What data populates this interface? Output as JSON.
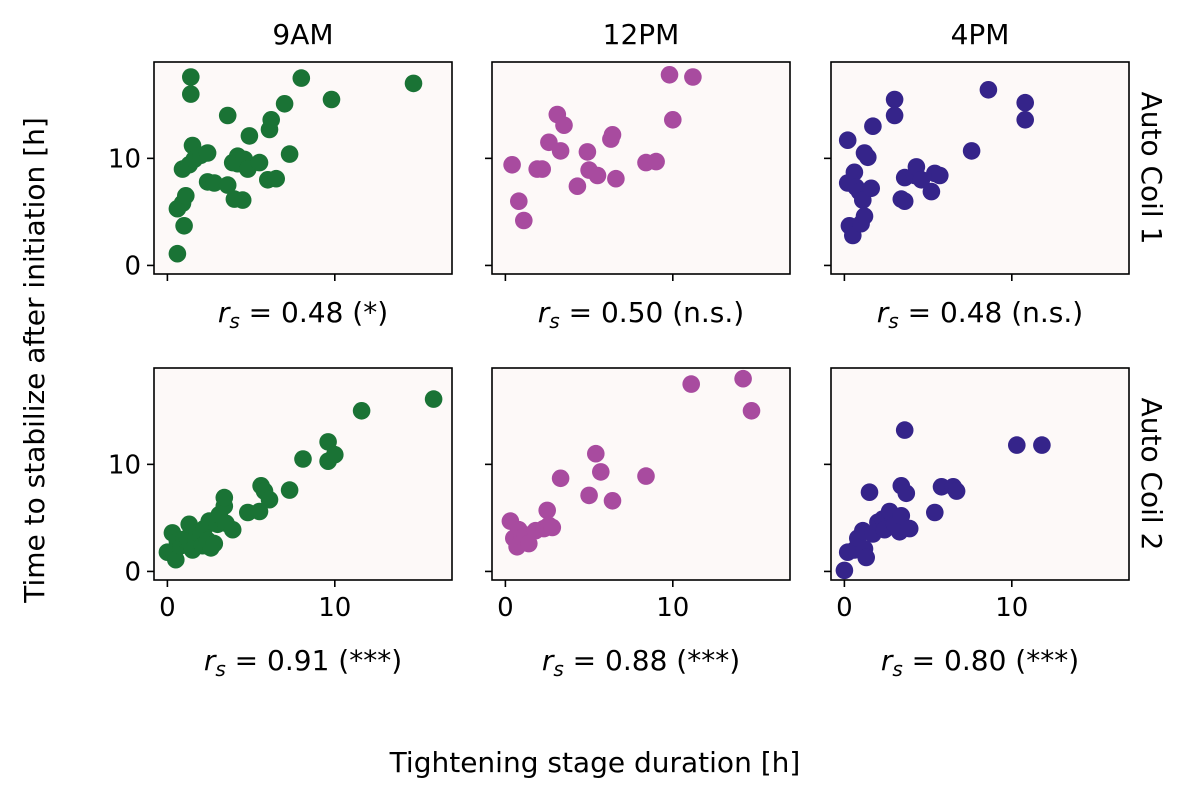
{
  "chart_data": {
    "type": "scatter",
    "figure": {
      "xlabel": "Tightening stage duration [h]",
      "ylabel": "Time to stabilize after initiation [h]",
      "columns": [
        "9AM",
        "12PM",
        "4PM"
      ],
      "rows": [
        "Auto Coil 1",
        "Auto Coil 2"
      ],
      "xlim": [
        -0.8,
        17
      ],
      "ylim": [
        -0.8,
        19
      ],
      "xticks": [
        0,
        10
      ],
      "yticks": [
        0,
        10
      ],
      "grid": false,
      "colors": {
        "9AM": "#1a7335",
        "12PM": "#a84b9f",
        "4PM": "#35248a",
        "panel_background": "#fdf9f8"
      }
    },
    "panels": [
      {
        "row": "Auto Coil 1",
        "column": "9AM",
        "color": "#1a7335",
        "stat_symbol": "r",
        "stat_sub": "s",
        "stat_text": " = 0.48 (*)",
        "points": [
          [
            0.6,
            1.1
          ],
          [
            0.6,
            5.3
          ],
          [
            0.9,
            5.8
          ],
          [
            1.1,
            6.5
          ],
          [
            1.0,
            3.7
          ],
          [
            0.9,
            9.0
          ],
          [
            1.3,
            9.4
          ],
          [
            1.4,
            16.0
          ],
          [
            1.4,
            17.6
          ],
          [
            1.5,
            11.2
          ],
          [
            1.6,
            9.9
          ],
          [
            2.0,
            10.3
          ],
          [
            2.4,
            10.5
          ],
          [
            2.4,
            7.8
          ],
          [
            2.8,
            7.7
          ],
          [
            3.6,
            14.0
          ],
          [
            3.6,
            7.5
          ],
          [
            3.9,
            9.6
          ],
          [
            4.0,
            6.2
          ],
          [
            4.2,
            10.2
          ],
          [
            4.2,
            9.5
          ],
          [
            4.5,
            6.1
          ],
          [
            4.6,
            9.9
          ],
          [
            4.8,
            9.0
          ],
          [
            4.9,
            12.1
          ],
          [
            5.5,
            9.6
          ],
          [
            6.0,
            8.0
          ],
          [
            6.1,
            12.7
          ],
          [
            6.2,
            13.6
          ],
          [
            6.5,
            8.1
          ],
          [
            7.0,
            15.1
          ],
          [
            7.3,
            10.4
          ],
          [
            8.0,
            17.5
          ],
          [
            9.8,
            15.5
          ],
          [
            14.7,
            17.0
          ]
        ]
      },
      {
        "row": "Auto Coil 1",
        "column": "12PM",
        "color": "#a84b9f",
        "stat_symbol": "r",
        "stat_sub": "s",
        "stat_text": " = 0.50 (n.s.)",
        "points": [
          [
            0.4,
            9.4
          ],
          [
            0.8,
            6.0
          ],
          [
            1.1,
            4.2
          ],
          [
            1.9,
            9.0
          ],
          [
            2.2,
            9.0
          ],
          [
            2.6,
            11.5
          ],
          [
            3.1,
            14.1
          ],
          [
            3.3,
            10.7
          ],
          [
            3.5,
            13.1
          ],
          [
            4.3,
            7.4
          ],
          [
            4.9,
            10.6
          ],
          [
            5.0,
            8.9
          ],
          [
            5.5,
            8.4
          ],
          [
            6.3,
            11.8
          ],
          [
            6.4,
            12.2
          ],
          [
            6.6,
            8.1
          ],
          [
            8.4,
            9.6
          ],
          [
            9.0,
            9.7
          ],
          [
            9.8,
            17.8
          ],
          [
            10.0,
            13.6
          ],
          [
            11.2,
            17.6
          ]
        ]
      },
      {
        "row": "Auto Coil 1",
        "column": "4PM",
        "color": "#35248a",
        "stat_symbol": "r",
        "stat_sub": "s",
        "stat_text": " = 0.48 (n.s.)",
        "points": [
          [
            0.2,
            7.7
          ],
          [
            0.2,
            11.7
          ],
          [
            0.3,
            3.7
          ],
          [
            0.5,
            2.8
          ],
          [
            0.6,
            8.7
          ],
          [
            0.7,
            7.3
          ],
          [
            0.9,
            6.9
          ],
          [
            1.0,
            3.9
          ],
          [
            1.1,
            6.1
          ],
          [
            1.2,
            4.6
          ],
          [
            1.2,
            10.5
          ],
          [
            1.4,
            10.1
          ],
          [
            1.6,
            7.2
          ],
          [
            1.7,
            13.0
          ],
          [
            3.0,
            15.5
          ],
          [
            3.0,
            14.0
          ],
          [
            3.4,
            6.2
          ],
          [
            3.6,
            6.0
          ],
          [
            3.6,
            8.2
          ],
          [
            4.2,
            8.4
          ],
          [
            4.3,
            9.2
          ],
          [
            4.6,
            8.0
          ],
          [
            5.2,
            6.9
          ],
          [
            5.4,
            8.6
          ],
          [
            5.7,
            8.4
          ],
          [
            7.6,
            10.7
          ],
          [
            8.6,
            16.4
          ],
          [
            10.8,
            15.2
          ],
          [
            10.8,
            13.6
          ]
        ]
      },
      {
        "row": "Auto Coil 2",
        "column": "9AM",
        "color": "#1a7335",
        "stat_symbol": "r",
        "stat_sub": "s",
        "stat_text": " = 0.91 (***)",
        "points": [
          [
            0.0,
            1.8
          ],
          [
            0.3,
            3.6
          ],
          [
            0.4,
            1.6
          ],
          [
            0.5,
            1.1
          ],
          [
            0.6,
            2.8
          ],
          [
            0.8,
            2.4
          ],
          [
            1.0,
            3.0
          ],
          [
            1.2,
            3.1
          ],
          [
            1.3,
            4.4
          ],
          [
            1.5,
            2.0
          ],
          [
            1.7,
            2.9
          ],
          [
            1.8,
            3.6
          ],
          [
            2.0,
            3.5
          ],
          [
            2.1,
            2.4
          ],
          [
            2.2,
            4.0
          ],
          [
            2.4,
            2.9
          ],
          [
            2.5,
            4.7
          ],
          [
            2.6,
            2.2
          ],
          [
            2.8,
            2.6
          ],
          [
            3.0,
            4.4
          ],
          [
            3.1,
            5.3
          ],
          [
            3.4,
            6.1
          ],
          [
            3.4,
            6.9
          ],
          [
            3.5,
            4.5
          ],
          [
            3.9,
            3.9
          ],
          [
            4.8,
            5.5
          ],
          [
            5.5,
            5.6
          ],
          [
            5.6,
            8.0
          ],
          [
            5.8,
            7.5
          ],
          [
            6.1,
            6.7
          ],
          [
            7.3,
            7.6
          ],
          [
            8.1,
            10.5
          ],
          [
            9.6,
            10.3
          ],
          [
            9.6,
            12.1
          ],
          [
            10.0,
            10.9
          ],
          [
            11.6,
            15.0
          ],
          [
            15.9,
            16.1
          ]
        ]
      },
      {
        "row": "Auto Coil 2",
        "column": "12PM",
        "color": "#a84b9f",
        "stat_symbol": "r",
        "stat_sub": "s",
        "stat_text": " = 0.88 (***)",
        "points": [
          [
            0.3,
            4.7
          ],
          [
            0.5,
            3.1
          ],
          [
            0.7,
            2.3
          ],
          [
            0.8,
            3.9
          ],
          [
            1.0,
            3.2
          ],
          [
            1.2,
            3.4
          ],
          [
            1.4,
            2.6
          ],
          [
            1.8,
            3.8
          ],
          [
            2.3,
            4.0
          ],
          [
            2.5,
            5.7
          ],
          [
            2.6,
            4.3
          ],
          [
            2.8,
            4.1
          ],
          [
            3.3,
            8.7
          ],
          [
            5.0,
            7.1
          ],
          [
            5.4,
            11.0
          ],
          [
            5.7,
            9.3
          ],
          [
            6.4,
            6.6
          ],
          [
            8.4,
            8.9
          ],
          [
            11.1,
            17.5
          ],
          [
            14.2,
            18.0
          ],
          [
            14.7,
            15.0
          ]
        ]
      },
      {
        "row": "Auto Coil 2",
        "column": "4PM",
        "color": "#35248a",
        "stat_symbol": "r",
        "stat_sub": "s",
        "stat_text": " = 0.80 (***)",
        "points": [
          [
            0.0,
            0.1
          ],
          [
            0.2,
            1.8
          ],
          [
            0.6,
            2.0
          ],
          [
            0.8,
            3.1
          ],
          [
            1.1,
            3.8
          ],
          [
            1.2,
            2.1
          ],
          [
            1.3,
            1.3
          ],
          [
            1.5,
            7.4
          ],
          [
            1.7,
            3.5
          ],
          [
            2.0,
            4.6
          ],
          [
            2.3,
            4.9
          ],
          [
            2.4,
            3.9
          ],
          [
            2.7,
            5.6
          ],
          [
            3.0,
            4.4
          ],
          [
            3.3,
            3.7
          ],
          [
            3.4,
            5.2
          ],
          [
            3.4,
            8.0
          ],
          [
            3.6,
            13.2
          ],
          [
            3.7,
            7.3
          ],
          [
            3.9,
            4.0
          ],
          [
            5.4,
            5.5
          ],
          [
            5.8,
            7.9
          ],
          [
            6.5,
            7.9
          ],
          [
            6.7,
            7.5
          ],
          [
            10.3,
            11.8
          ],
          [
            11.8,
            11.8
          ]
        ]
      }
    ]
  }
}
